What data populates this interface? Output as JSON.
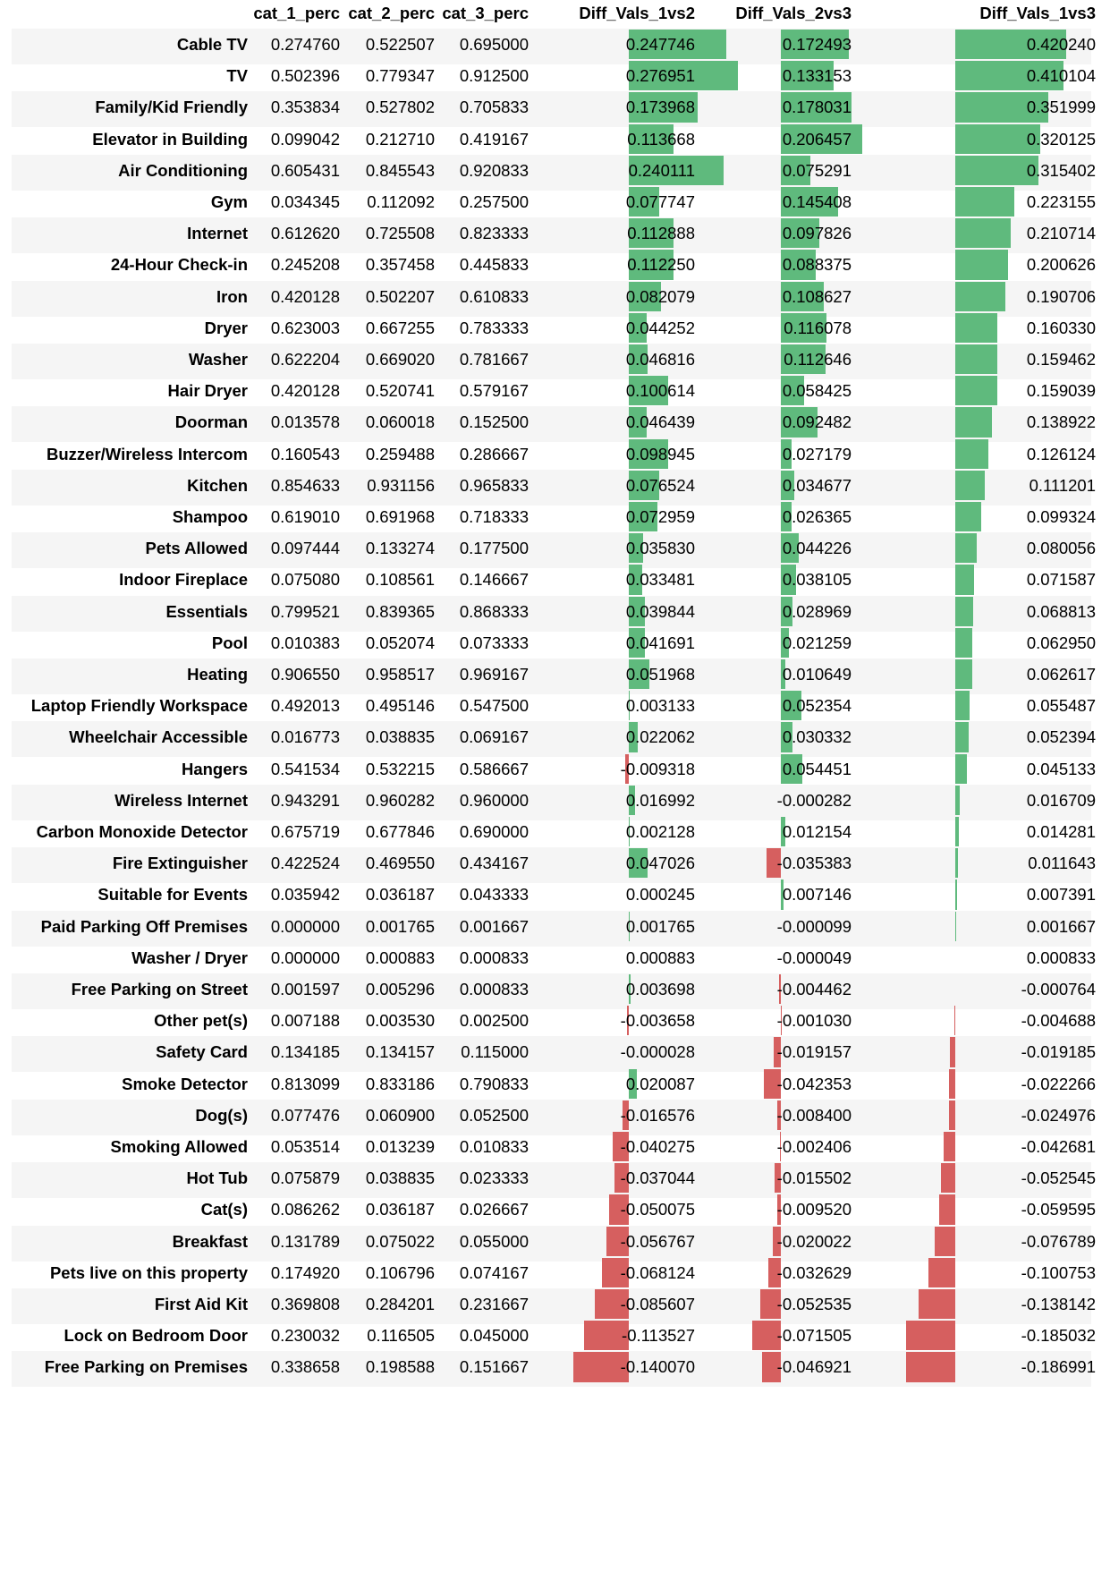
{
  "columns": [
    "",
    "cat_1_perc",
    "cat_2_perc",
    "cat_3_perc",
    "Diff_Vals_1vs2",
    "Diff_Vals_2vs3",
    "Diff_Vals_1vs3"
  ],
  "colors": {
    "positive": "#5fba7d",
    "negative": "#d65f5f",
    "stripe": "#f5f5f5"
  },
  "rows": [
    {
      "name": "Cable TV",
      "c1": "0.274760",
      "c2": "0.522507",
      "c3": "0.695000",
      "d12": "0.247746",
      "d23": "0.172493",
      "d13": "0.420240"
    },
    {
      "name": "TV",
      "c1": "0.502396",
      "c2": "0.779347",
      "c3": "0.912500",
      "d12": "0.276951",
      "d23": "0.133153",
      "d13": "0.410104"
    },
    {
      "name": "Family/Kid Friendly",
      "c1": "0.353834",
      "c2": "0.527802",
      "c3": "0.705833",
      "d12": "0.173968",
      "d23": "0.178031",
      "d13": "0.351999"
    },
    {
      "name": "Elevator in Building",
      "c1": "0.099042",
      "c2": "0.212710",
      "c3": "0.419167",
      "d12": "0.113668",
      "d23": "0.206457",
      "d13": "0.320125"
    },
    {
      "name": "Air Conditioning",
      "c1": "0.605431",
      "c2": "0.845543",
      "c3": "0.920833",
      "d12": "0.240111",
      "d23": "0.075291",
      "d13": "0.315402"
    },
    {
      "name": "Gym",
      "c1": "0.034345",
      "c2": "0.112092",
      "c3": "0.257500",
      "d12": "0.077747",
      "d23": "0.145408",
      "d13": "0.223155"
    },
    {
      "name": "Internet",
      "c1": "0.612620",
      "c2": "0.725508",
      "c3": "0.823333",
      "d12": "0.112888",
      "d23": "0.097826",
      "d13": "0.210714"
    },
    {
      "name": "24-Hour Check-in",
      "c1": "0.245208",
      "c2": "0.357458",
      "c3": "0.445833",
      "d12": "0.112250",
      "d23": "0.088375",
      "d13": "0.200626"
    },
    {
      "name": "Iron",
      "c1": "0.420128",
      "c2": "0.502207",
      "c3": "0.610833",
      "d12": "0.082079",
      "d23": "0.108627",
      "d13": "0.190706"
    },
    {
      "name": "Dryer",
      "c1": "0.623003",
      "c2": "0.667255",
      "c3": "0.783333",
      "d12": "0.044252",
      "d23": "0.116078",
      "d13": "0.160330"
    },
    {
      "name": "Washer",
      "c1": "0.622204",
      "c2": "0.669020",
      "c3": "0.781667",
      "d12": "0.046816",
      "d23": "0.112646",
      "d13": "0.159462"
    },
    {
      "name": "Hair Dryer",
      "c1": "0.420128",
      "c2": "0.520741",
      "c3": "0.579167",
      "d12": "0.100614",
      "d23": "0.058425",
      "d13": "0.159039"
    },
    {
      "name": "Doorman",
      "c1": "0.013578",
      "c2": "0.060018",
      "c3": "0.152500",
      "d12": "0.046439",
      "d23": "0.092482",
      "d13": "0.138922"
    },
    {
      "name": "Buzzer/Wireless Intercom",
      "c1": "0.160543",
      "c2": "0.259488",
      "c3": "0.286667",
      "d12": "0.098945",
      "d23": "0.027179",
      "d13": "0.126124"
    },
    {
      "name": "Kitchen",
      "c1": "0.854633",
      "c2": "0.931156",
      "c3": "0.965833",
      "d12": "0.076524",
      "d23": "0.034677",
      "d13": "0.111201"
    },
    {
      "name": "Shampoo",
      "c1": "0.619010",
      "c2": "0.691968",
      "c3": "0.718333",
      "d12": "0.072959",
      "d23": "0.026365",
      "d13": "0.099324"
    },
    {
      "name": "Pets Allowed",
      "c1": "0.097444",
      "c2": "0.133274",
      "c3": "0.177500",
      "d12": "0.035830",
      "d23": "0.044226",
      "d13": "0.080056"
    },
    {
      "name": "Indoor Fireplace",
      "c1": "0.075080",
      "c2": "0.108561",
      "c3": "0.146667",
      "d12": "0.033481",
      "d23": "0.038105",
      "d13": "0.071587"
    },
    {
      "name": "Essentials",
      "c1": "0.799521",
      "c2": "0.839365",
      "c3": "0.868333",
      "d12": "0.039844",
      "d23": "0.028969",
      "d13": "0.068813"
    },
    {
      "name": "Pool",
      "c1": "0.010383",
      "c2": "0.052074",
      "c3": "0.073333",
      "d12": "0.041691",
      "d23": "0.021259",
      "d13": "0.062950"
    },
    {
      "name": "Heating",
      "c1": "0.906550",
      "c2": "0.958517",
      "c3": "0.969167",
      "d12": "0.051968",
      "d23": "0.010649",
      "d13": "0.062617"
    },
    {
      "name": "Laptop Friendly Workspace",
      "c1": "0.492013",
      "c2": "0.495146",
      "c3": "0.547500",
      "d12": "0.003133",
      "d23": "0.052354",
      "d13": "0.055487"
    },
    {
      "name": "Wheelchair Accessible",
      "c1": "0.016773",
      "c2": "0.038835",
      "c3": "0.069167",
      "d12": "0.022062",
      "d23": "0.030332",
      "d13": "0.052394"
    },
    {
      "name": "Hangers",
      "c1": "0.541534",
      "c2": "0.532215",
      "c3": "0.586667",
      "d12": "-0.009318",
      "d23": "0.054451",
      "d13": "0.045133"
    },
    {
      "name": "Wireless Internet",
      "c1": "0.943291",
      "c2": "0.960282",
      "c3": "0.960000",
      "d12": "0.016992",
      "d23": "-0.000282",
      "d13": "0.016709"
    },
    {
      "name": "Carbon Monoxide Detector",
      "c1": "0.675719",
      "c2": "0.677846",
      "c3": "0.690000",
      "d12": "0.002128",
      "d23": "0.012154",
      "d13": "0.014281"
    },
    {
      "name": "Fire Extinguisher",
      "c1": "0.422524",
      "c2": "0.469550",
      "c3": "0.434167",
      "d12": "0.047026",
      "d23": "-0.035383",
      "d13": "0.011643"
    },
    {
      "name": "Suitable for Events",
      "c1": "0.035942",
      "c2": "0.036187",
      "c3": "0.043333",
      "d12": "0.000245",
      "d23": "0.007146",
      "d13": "0.007391"
    },
    {
      "name": "Paid Parking Off Premises",
      "c1": "0.000000",
      "c2": "0.001765",
      "c3": "0.001667",
      "d12": "0.001765",
      "d23": "-0.000099",
      "d13": "0.001667"
    },
    {
      "name": "Washer / Dryer",
      "c1": "0.000000",
      "c2": "0.000883",
      "c3": "0.000833",
      "d12": "0.000883",
      "d23": "-0.000049",
      "d13": "0.000833"
    },
    {
      "name": "Free Parking on Street",
      "c1": "0.001597",
      "c2": "0.005296",
      "c3": "0.000833",
      "d12": "0.003698",
      "d23": "-0.004462",
      "d13": "-0.000764"
    },
    {
      "name": "Other pet(s)",
      "c1": "0.007188",
      "c2": "0.003530",
      "c3": "0.002500",
      "d12": "-0.003658",
      "d23": "-0.001030",
      "d13": "-0.004688"
    },
    {
      "name": "Safety Card",
      "c1": "0.134185",
      "c2": "0.134157",
      "c3": "0.115000",
      "d12": "-0.000028",
      "d23": "-0.019157",
      "d13": "-0.019185"
    },
    {
      "name": "Smoke Detector",
      "c1": "0.813099",
      "c2": "0.833186",
      "c3": "0.790833",
      "d12": "0.020087",
      "d23": "-0.042353",
      "d13": "-0.022266"
    },
    {
      "name": "Dog(s)",
      "c1": "0.077476",
      "c2": "0.060900",
      "c3": "0.052500",
      "d12": "-0.016576",
      "d23": "-0.008400",
      "d13": "-0.024976"
    },
    {
      "name": "Smoking Allowed",
      "c1": "0.053514",
      "c2": "0.013239",
      "c3": "0.010833",
      "d12": "-0.040275",
      "d23": "-0.002406",
      "d13": "-0.042681"
    },
    {
      "name": "Hot Tub",
      "c1": "0.075879",
      "c2": "0.038835",
      "c3": "0.023333",
      "d12": "-0.037044",
      "d23": "-0.015502",
      "d13": "-0.052545"
    },
    {
      "name": "Cat(s)",
      "c1": "0.086262",
      "c2": "0.036187",
      "c3": "0.026667",
      "d12": "-0.050075",
      "d23": "-0.009520",
      "d13": "-0.059595"
    },
    {
      "name": "Breakfast",
      "c1": "0.131789",
      "c2": "0.075022",
      "c3": "0.055000",
      "d12": "-0.056767",
      "d23": "-0.020022",
      "d13": "-0.076789"
    },
    {
      "name": "Pets live on this property",
      "c1": "0.174920",
      "c2": "0.106796",
      "c3": "0.074167",
      "d12": "-0.068124",
      "d23": "-0.032629",
      "d13": "-0.100753"
    },
    {
      "name": "First Aid Kit",
      "c1": "0.369808",
      "c2": "0.284201",
      "c3": "0.231667",
      "d12": "-0.085607",
      "d23": "-0.052535",
      "d13": "-0.138142"
    },
    {
      "name": "Lock on Bedroom Door",
      "c1": "0.230032",
      "c2": "0.116505",
      "c3": "0.045000",
      "d12": "-0.113527",
      "d23": "-0.071505",
      "d13": "-0.185032"
    },
    {
      "name": "Free Parking on Premises",
      "c1": "0.338658",
      "c2": "0.198588",
      "c3": "0.151667",
      "d12": "-0.140070",
      "d23": "-0.046921",
      "d13": "-0.186991"
    }
  ]
}
